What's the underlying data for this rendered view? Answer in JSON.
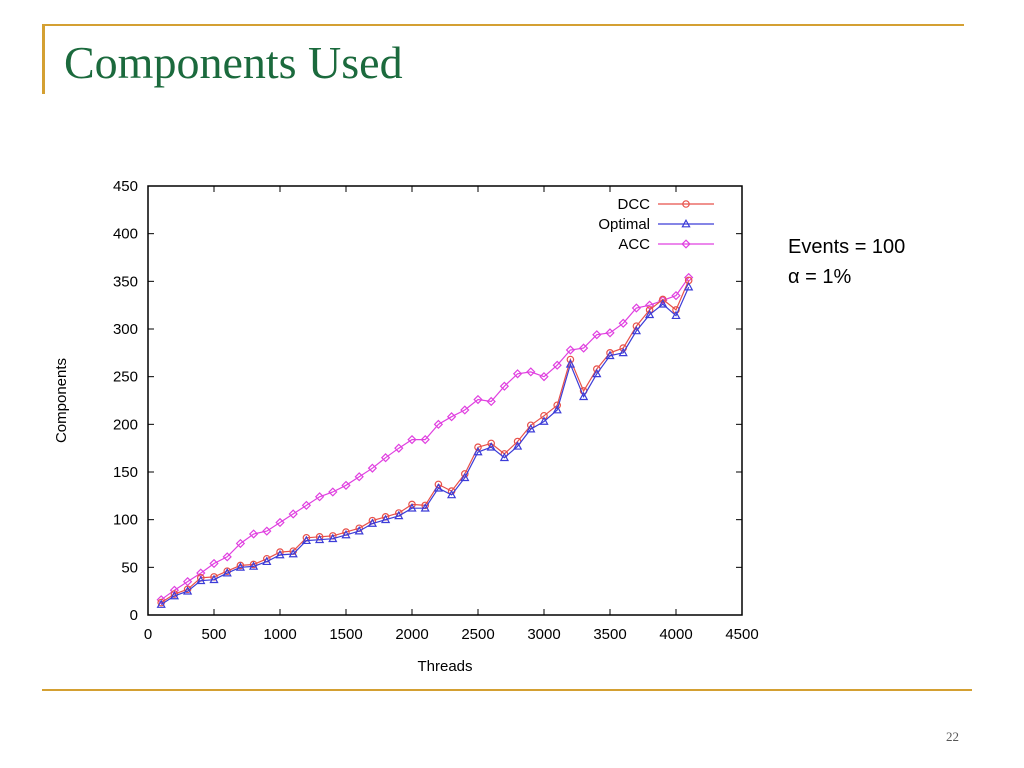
{
  "slide": {
    "title": "Components Used",
    "page_number": "22"
  },
  "annotation": {
    "line1": "Events = 100",
    "line2": "α  = 1%"
  },
  "colors": {
    "accent": "#d4a032",
    "title": "#1b6a3d",
    "dcc": "#e8504a",
    "optimal": "#3c3cd8",
    "acc": "#e040e0"
  },
  "chart_data": {
    "type": "line",
    "title": "",
    "xlabel": "Threads",
    "ylabel": "Components",
    "xlim": [
      0,
      4500
    ],
    "ylim": [
      0,
      450
    ],
    "xticks": [
      0,
      500,
      1000,
      1500,
      2000,
      2500,
      3000,
      3500,
      4000,
      4500
    ],
    "yticks": [
      0,
      50,
      100,
      150,
      200,
      250,
      300,
      350,
      400,
      450
    ],
    "legend": "top-right",
    "grid": false,
    "x": [
      100,
      200,
      300,
      400,
      500,
      600,
      700,
      800,
      900,
      1000,
      1100,
      1200,
      1300,
      1400,
      1500,
      1600,
      1700,
      1800,
      1900,
      2000,
      2100,
      2200,
      2300,
      2400,
      2500,
      2600,
      2700,
      2800,
      2900,
      3000,
      3100,
      3200,
      3300,
      3400,
      3500,
      3600,
      3700,
      3800,
      3900,
      4000,
      4096
    ],
    "series": [
      {
        "name": "DCC",
        "color": "#e8504a",
        "marker": "circle",
        "values": [
          13,
          22,
          27,
          39,
          40,
          46,
          52,
          53,
          59,
          66,
          67,
          81,
          82,
          83,
          87,
          91,
          99,
          103,
          107,
          116,
          115,
          137,
          130,
          148,
          176,
          180,
          169,
          182,
          199,
          209,
          220,
          268,
          235,
          258,
          275,
          280,
          303,
          320,
          331,
          320,
          351
        ]
      },
      {
        "name": "Optimal",
        "color": "#3c3cd8",
        "marker": "triangle",
        "values": [
          11,
          20,
          25,
          36,
          37,
          44,
          50,
          51,
          56,
          63,
          64,
          78,
          79,
          80,
          84,
          88,
          96,
          100,
          104,
          112,
          112,
          133,
          126,
          144,
          171,
          176,
          165,
          177,
          195,
          203,
          215,
          263,
          229,
          253,
          272,
          275,
          298,
          315,
          326,
          314,
          344
        ]
      },
      {
        "name": "ACC",
        "color": "#e040e0",
        "marker": "diamond",
        "values": [
          16,
          26,
          35,
          44,
          54,
          61,
          75,
          85,
          88,
          97,
          106,
          115,
          124,
          129,
          136,
          145,
          154,
          165,
          175,
          184,
          184,
          200,
          208,
          215,
          226,
          224,
          240,
          253,
          255,
          250,
          262,
          278,
          280,
          294,
          296,
          306,
          322,
          325,
          330,
          335,
          354
        ]
      }
    ]
  }
}
